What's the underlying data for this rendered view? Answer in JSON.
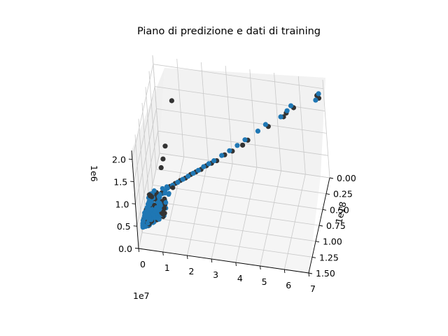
{
  "chart_data": {
    "type": "scatter",
    "projection": "3d",
    "title": "Piano di predizione e dati di training",
    "xlabel": "",
    "ylabel": "",
    "zlabel": "",
    "grid": true,
    "legend": "none",
    "x_axis": {
      "ticks": [
        "0",
        "1",
        "2",
        "3",
        "4",
        "5",
        "6",
        "7"
      ],
      "offset_text": "1e7",
      "range": [
        0,
        70000000
      ]
    },
    "y_axis": {
      "ticks": [
        "0.00",
        "0.25",
        "0.50",
        "0.75",
        "1.00",
        "1.25",
        "1.50"
      ],
      "offset_text": "1e18",
      "range": [
        0,
        1.5e+18
      ]
    },
    "z_axis": {
      "ticks": [
        "0.0",
        "0.5",
        "1.0",
        "1.5",
        "2.0"
      ],
      "offset_text": "1e6",
      "range": [
        0,
        2200000
      ]
    },
    "colors": {
      "training": "#333333",
      "prediction": "#1f77b4"
    },
    "series": [
      {
        "marker": "dark",
        "points": [
          {
            "x": 68000000,
            "y": 2e+16,
            "z": 1800000
          },
          {
            "x": 67500000,
            "y": 5e+16,
            "z": 1900000
          },
          {
            "x": 58000000,
            "y": 1.2e+17,
            "z": 1650000
          },
          {
            "x": 55000000,
            "y": 1.5e+17,
            "z": 1550000
          },
          {
            "x": 54000000,
            "y": 1.8e+17,
            "z": 1500000
          },
          {
            "x": 48000000,
            "y": 2.6e+17,
            "z": 1350000
          },
          {
            "x": 40000000,
            "y": 3.8e+17,
            "z": 1150000
          },
          {
            "x": 38000000,
            "y": 4.2e+17,
            "z": 1080000
          },
          {
            "x": 34000000,
            "y": 4.8e+17,
            "z": 1000000
          },
          {
            "x": 31000000,
            "y": 5.2e+17,
            "z": 950000
          },
          {
            "x": 28000000,
            "y": 5.8e+17,
            "z": 880000
          },
          {
            "x": 26000000,
            "y": 6.1e+17,
            "z": 850000
          },
          {
            "x": 24000000,
            "y": 6.4e+17,
            "z": 820000
          },
          {
            "x": 22000000,
            "y": 6.8e+17,
            "z": 780000
          },
          {
            "x": 20000000,
            "y": 7.1e+17,
            "z": 750000
          },
          {
            "x": 8000000,
            "y": 1.8e+17,
            "z": 1500000
          },
          {
            "x": 6000000,
            "y": 4.5e+17,
            "z": 850000
          },
          {
            "x": 5500000,
            "y": 5.5e+17,
            "z": 700000
          },
          {
            "x": 5000000,
            "y": 6.2e+17,
            "z": 600000
          },
          {
            "x": 18000000,
            "y": 7.4e+17,
            "z": 720000
          },
          {
            "x": 16000000,
            "y": 7.8e+17,
            "z": 680000
          },
          {
            "x": 14000000,
            "y": 8e+17,
            "z": 640000
          },
          {
            "x": 12000000,
            "y": 8.3e+17,
            "z": 600000
          },
          {
            "x": 10000000,
            "y": 8.6e+17,
            "z": 560000
          }
        ]
      },
      {
        "marker": "blue",
        "points": [
          {
            "x": 68000000,
            "y": 2e+16,
            "z": 1900000
          },
          {
            "x": 67000000,
            "y": 7e+16,
            "z": 1820000
          },
          {
            "x": 57000000,
            "y": 1.3e+17,
            "z": 1700000
          },
          {
            "x": 55500000,
            "y": 1.6e+17,
            "z": 1620000
          },
          {
            "x": 53000000,
            "y": 2e+17,
            "z": 1520000
          },
          {
            "x": 47000000,
            "y": 2.7e+17,
            "z": 1400000
          },
          {
            "x": 44000000,
            "y": 3.2e+17,
            "z": 1300000
          },
          {
            "x": 39000000,
            "y": 4e+17,
            "z": 1180000
          },
          {
            "x": 36000000,
            "y": 4.5e+17,
            "z": 1100000
          },
          {
            "x": 33000000,
            "y": 5e+17,
            "z": 1030000
          },
          {
            "x": 30000000,
            "y": 5.5e+17,
            "z": 970000
          },
          {
            "x": 27000000,
            "y": 6e+17,
            "z": 900000
          },
          {
            "x": 25000000,
            "y": 6.3e+17,
            "z": 860000
          },
          {
            "x": 23000000,
            "y": 6.6e+17,
            "z": 820000
          },
          {
            "x": 21000000,
            "y": 7e+17,
            "z": 780000
          },
          {
            "x": 19000000,
            "y": 7.3e+17,
            "z": 740000
          },
          {
            "x": 17000000,
            "y": 7.6e+17,
            "z": 700000
          },
          {
            "x": 15000000,
            "y": 7.9e+17,
            "z": 660000
          },
          {
            "x": 13000000,
            "y": 8.2e+17,
            "z": 620000
          },
          {
            "x": 11000000,
            "y": 8.5e+17,
            "z": 580000
          },
          {
            "x": 9000000,
            "y": 8.8e+17,
            "z": 540000
          },
          {
            "x": 8000000,
            "y": 9e+17,
            "z": 500000
          },
          {
            "x": 7000000,
            "y": 9.2e+17,
            "z": 460000
          },
          {
            "x": 6000000,
            "y": 9.5e+17,
            "z": 420000
          },
          {
            "x": 5000000,
            "y": 9.8e+17,
            "z": 380000
          },
          {
            "x": 4000000,
            "y": 1.02e+18,
            "z": 330000
          },
          {
            "x": 3000000,
            "y": 1.06e+18,
            "z": 280000
          },
          {
            "x": 2000000,
            "y": 1.1e+18,
            "z": 230000
          },
          {
            "x": 1000000,
            "y": 1.14e+18,
            "z": 170000
          }
        ]
      }
    ]
  }
}
